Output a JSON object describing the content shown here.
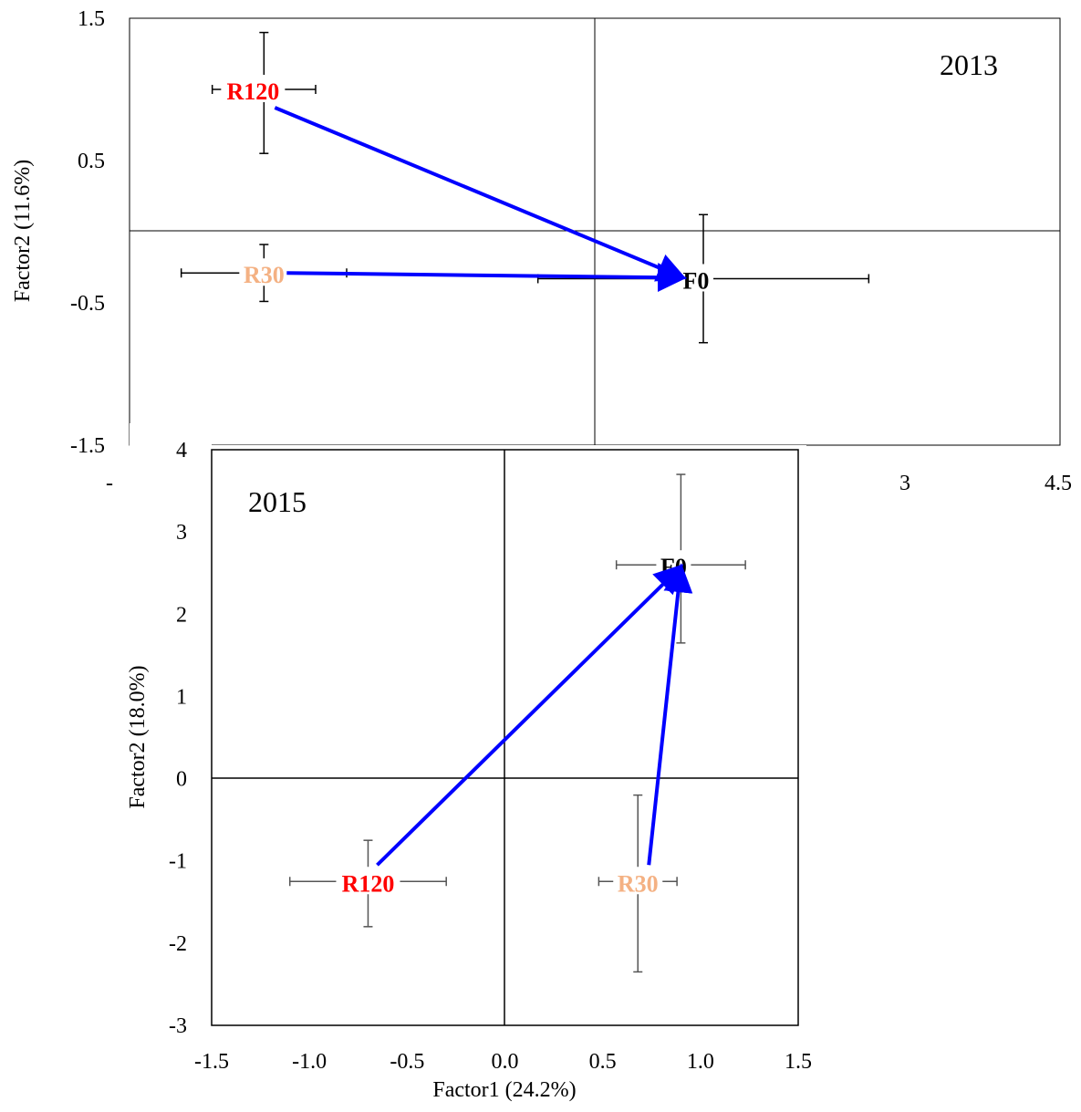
{
  "chart_data": [
    {
      "type": "scatter",
      "title": "2013",
      "xlabel": "",
      "ylabel": "Factor2 (11.6%)",
      "xlim": [
        -4.5,
        4.5
      ],
      "ylim": [
        -1.5,
        1.5
      ],
      "x_ticks": [
        "-",
        "3",
        "4.5"
      ],
      "y_ticks": [
        "1.5",
        "0.5",
        "-0.5",
        "-1.5"
      ],
      "grid": false,
      "points": [
        {
          "label": "R120",
          "color": "#ff0000",
          "x": -3.2,
          "y": 1.0,
          "xerr_left": 0.5,
          "xerr_right": 0.5,
          "yerr_down": 0.45,
          "yerr_up": 0.4
        },
        {
          "label": "R30",
          "color": "#f4b183",
          "x": -3.2,
          "y": -0.29,
          "xerr_left": 0.8,
          "xerr_right": 0.8,
          "yerr_down": 0.2,
          "yerr_up": 0.2
        },
        {
          "label": "F0",
          "color": "#000000",
          "x": 1.05,
          "y": -0.33,
          "xerr_left": 1.6,
          "xerr_right": 1.6,
          "yerr_down": 0.45,
          "yerr_up": 0.45
        }
      ],
      "arrows": [
        {
          "from": "R120",
          "to": "F0",
          "color": "#0000ff"
        },
        {
          "from": "R30",
          "to": "F0",
          "color": "#0000ff"
        }
      ]
    },
    {
      "type": "scatter",
      "title": "2015",
      "xlabel": "Factor1 (24.2%)",
      "ylabel": "Factor2 (18.0%)",
      "xlim": [
        -1.5,
        1.5
      ],
      "ylim": [
        -3,
        4
      ],
      "x_ticks": [
        "-1.5",
        "-1.0",
        "-0.5",
        "0.0",
        "0.5",
        "1.0",
        "1.5"
      ],
      "y_ticks": [
        "4",
        "3",
        "2",
        "1",
        "0",
        "-1",
        "-2",
        "-3"
      ],
      "grid": false,
      "points": [
        {
          "label": "F0",
          "color": "#000000",
          "x": 0.9,
          "y": 2.6,
          "xerr_left": 0.33,
          "xerr_right": 0.33,
          "yerr_down": 0.95,
          "yerr_up": 1.1
        },
        {
          "label": "R120",
          "color": "#ff0000",
          "x": -0.7,
          "y": -1.25,
          "xerr_left": 0.4,
          "xerr_right": 0.4,
          "yerr_down": 0.55,
          "yerr_up": 0.5
        },
        {
          "label": "R30",
          "color": "#f4b183",
          "x": 0.68,
          "y": -1.25,
          "xerr_left": 0.2,
          "xerr_right": 0.2,
          "yerr_down": 1.1,
          "yerr_up": 1.05
        }
      ],
      "arrows": [
        {
          "from": "R120",
          "to": "F0",
          "color": "#0000ff"
        },
        {
          "from": "R30",
          "to": "F0",
          "color": "#0000ff"
        }
      ]
    }
  ]
}
